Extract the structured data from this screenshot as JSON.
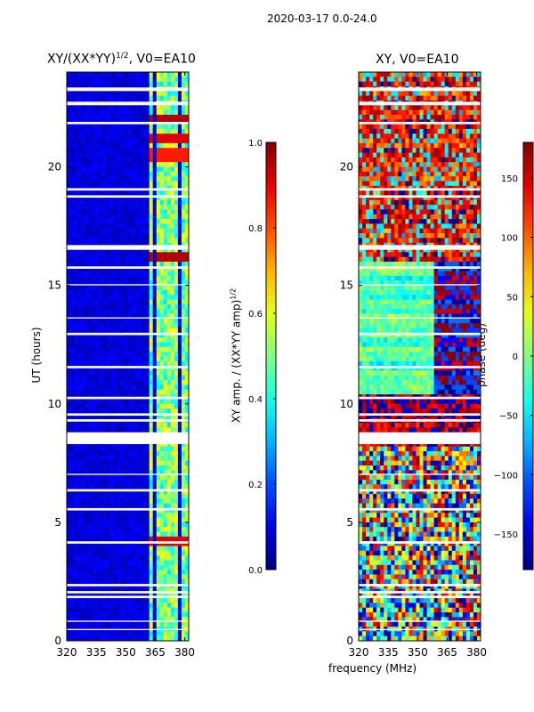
{
  "figure": {
    "suptitle": "2020-03-17 0.0-24.0",
    "left_title_main": "XY/(XX*YY)",
    "left_title_sup": "1/2",
    "left_title_suffix": ", V0=EA10",
    "right_title": "XY, V0=EA10",
    "ylabel": "UT (hours)",
    "xlabel": "frequency (MHz)",
    "amp_cbar_label_main": "XY amp. / (XX*YY amp)",
    "amp_cbar_label_sup": "1/2",
    "phase_cbar_label": "phase (deg)"
  },
  "chart_data": [
    {
      "type": "heatmap",
      "title": "XY/(XX*YY)^1/2, V0=EA10",
      "xlabel": "",
      "ylabel": "UT (hours)",
      "xlim": [
        320,
        382
      ],
      "ylim": [
        0,
        24
      ],
      "xticks": [
        "320",
        "335",
        "350",
        "365",
        "380"
      ],
      "xtick_values": [
        320,
        335,
        350,
        365,
        380
      ],
      "yticks": [
        "0",
        "5",
        "10",
        "15",
        "20"
      ],
      "ytick_values": [
        0,
        5,
        10,
        15,
        20
      ],
      "colormap": "jet",
      "colorbar": {
        "label": "XY amp. / (XX*YY amp)^1/2",
        "range": [
          0.0,
          1.0
        ],
        "ticks": [
          "0.0",
          "0.2",
          "0.4",
          "0.6",
          "0.8",
          "1.0"
        ],
        "tick_values": [
          0.0,
          0.2,
          0.4,
          0.6,
          0.8,
          1.0
        ]
      },
      "background_value": 0.05,
      "bright_channels_mhz": [
        363,
        367,
        369,
        373,
        376,
        380
      ],
      "bright_channel_value": 0.5,
      "hot_rows": [
        {
          "hour": 22.0,
          "value": 0.95
        },
        {
          "hour": 21.2,
          "value": 0.9
        },
        {
          "hour": 20.5,
          "value": 0.85
        },
        {
          "hour": 16.2,
          "value": 0.95
        },
        {
          "hour": 4.3,
          "value": 0.9
        }
      ],
      "gap_hours": [
        [
          23.2,
          23.35
        ],
        [
          22.6,
          22.75
        ],
        [
          21.8,
          21.9
        ],
        [
          19.0,
          19.1
        ],
        [
          18.7,
          18.8
        ],
        [
          16.5,
          16.7
        ],
        [
          15.7,
          15.8
        ],
        [
          15.0,
          15.05
        ],
        [
          13.6,
          13.65
        ],
        [
          12.9,
          13.0
        ],
        [
          11.5,
          11.6
        ],
        [
          10.2,
          10.3
        ],
        [
          9.5,
          9.6
        ],
        [
          9.25,
          9.35
        ],
        [
          8.3,
          8.8
        ],
        [
          7.0,
          7.05
        ],
        [
          6.3,
          6.4
        ],
        [
          5.5,
          5.6
        ],
        [
          4.1,
          4.2
        ],
        [
          2.3,
          2.4
        ],
        [
          2.0,
          2.1
        ],
        [
          1.8,
          1.9
        ],
        [
          0.8,
          0.85
        ],
        [
          0.45,
          0.5
        ]
      ]
    },
    {
      "type": "heatmap",
      "title": "XY, V0=EA10",
      "xlabel": "frequency (MHz)",
      "ylabel": "",
      "xlim": [
        320,
        382
      ],
      "ylim": [
        0,
        24
      ],
      "xticks": [
        "320",
        "335",
        "350",
        "365",
        "380"
      ],
      "xtick_values": [
        320,
        335,
        350,
        365,
        380
      ],
      "yticks": [
        "0",
        "5",
        "10",
        "15",
        "20"
      ],
      "ytick_values": [
        0,
        5,
        10,
        15,
        20
      ],
      "colormap": "jet",
      "colorbar": {
        "label": "phase (deg)",
        "range": [
          -180,
          180
        ],
        "ticks": [
          "−150",
          "−100",
          "−50",
          "0",
          "50",
          "100",
          "150"
        ],
        "tick_values": [
          -150,
          -100,
          -50,
          0,
          50,
          100,
          150
        ]
      },
      "bands": [
        {
          "from": 0.0,
          "to": 8.2,
          "style": "noisy mixed phase"
        },
        {
          "from": 8.8,
          "to": 10.5,
          "style": "orange/red with striping"
        },
        {
          "from": 10.5,
          "to": 16.0,
          "style": "light blue/cyan, red-blue at 360-380 MHz"
        },
        {
          "from": 16.0,
          "to": 24.0,
          "style": "orange/red/yellow with blue patches"
        }
      ],
      "gap_hours": [
        [
          23.2,
          23.35
        ],
        [
          22.6,
          22.75
        ],
        [
          21.8,
          21.9
        ],
        [
          19.0,
          19.1
        ],
        [
          18.7,
          18.8
        ],
        [
          16.5,
          16.7
        ],
        [
          15.7,
          15.8
        ],
        [
          15.0,
          15.05
        ],
        [
          13.6,
          13.65
        ],
        [
          12.9,
          13.0
        ],
        [
          11.5,
          11.6
        ],
        [
          10.2,
          10.3
        ],
        [
          9.5,
          9.6
        ],
        [
          9.25,
          9.35
        ],
        [
          8.3,
          8.8
        ],
        [
          7.0,
          7.05
        ],
        [
          6.3,
          6.4
        ],
        [
          5.5,
          5.6
        ],
        [
          4.1,
          4.2
        ],
        [
          2.3,
          2.4
        ],
        [
          2.0,
          2.1
        ],
        [
          1.8,
          1.9
        ],
        [
          0.8,
          0.85
        ],
        [
          0.45,
          0.5
        ]
      ]
    }
  ]
}
